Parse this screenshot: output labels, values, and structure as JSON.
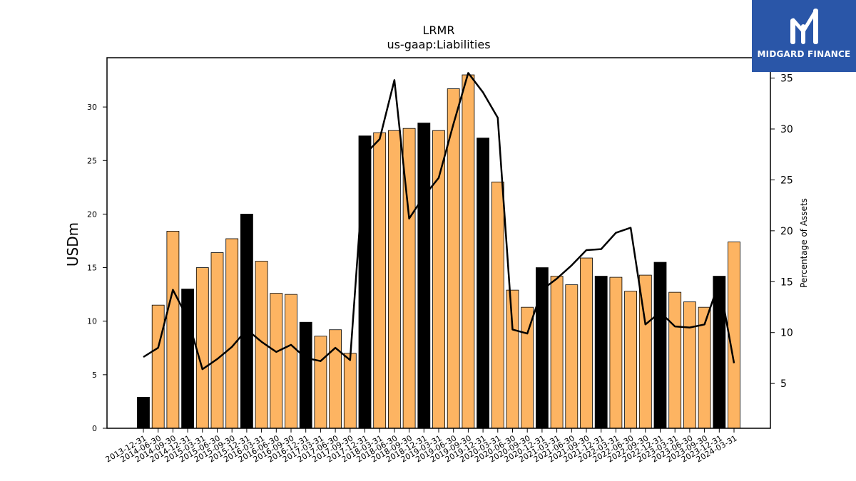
{
  "logo": {
    "text": "MIDGARD FINANCE",
    "background": "#2a56a8"
  },
  "chart_data": {
    "type": "bar",
    "title": "LRMR",
    "subtitle": "us-gaap:Liabilities",
    "ylabel": "USDm",
    "y2label": "Percentage of Assets",
    "ylim": [
      0,
      34.6
    ],
    "y2lim": [
      0.6,
      37.0
    ],
    "yticks": [
      0,
      5,
      10,
      15,
      20,
      25,
      30
    ],
    "y2ticks": [
      5,
      10,
      15,
      20,
      25,
      30,
      35
    ],
    "categories": [
      "2013-12-31",
      "2014-06-30",
      "2014-09-30",
      "2014-12-31",
      "2015-03-31",
      "2015-06-30",
      "2015-09-30",
      "2015-12-31",
      "2016-03-31",
      "2016-06-30",
      "2016-09-30",
      "2016-12-31",
      "2017-03-31",
      "2017-06-30",
      "2017-09-30",
      "2017-12-31",
      "2018-03-31",
      "2018-06-30",
      "2018-09-30",
      "2018-12-31",
      "2019-03-31",
      "2019-06-30",
      "2019-09-30",
      "2019-12-31",
      "2020-03-31",
      "2020-06-30",
      "2020-09-30",
      "2020-12-31",
      "2021-03-31",
      "2021-06-30",
      "2021-09-30",
      "2021-12-31",
      "2022-03-31",
      "2022-06-30",
      "2022-09-30",
      "2022-12-31",
      "2023-03-31",
      "2023-06-30",
      "2023-09-30",
      "2023-12-31",
      "2024-03-31"
    ],
    "series": [
      {
        "values": [
          2.9,
          11.5,
          18.4,
          13.0,
          15.0,
          16.4,
          17.7,
          20.0,
          15.6,
          12.6,
          12.5,
          9.9,
          8.6,
          9.2,
          7.0,
          27.3,
          27.6,
          27.8,
          28.0,
          28.5,
          27.8,
          31.7,
          33.0,
          27.1,
          23.0,
          12.9,
          11.3,
          15.0,
          14.2,
          13.4,
          15.9,
          14.2,
          14.1,
          12.8,
          14.3,
          15.5,
          12.7,
          11.8,
          11.3,
          14.2,
          17.4
        ]
      }
    ],
    "highlight_indices": [
      0,
      3,
      7,
      11,
      15,
      19,
      23,
      27,
      31,
      35,
      39
    ],
    "colors": {
      "bar": "#fdb462",
      "bar_highlight": "#000000",
      "line": "#000000"
    },
    "line": {
      "axis": "right",
      "values": [
        7.6,
        8.5,
        14.2,
        11.4,
        6.4,
        7.4,
        8.6,
        10.3,
        9.1,
        8.1,
        8.8,
        7.5,
        7.2,
        8.5,
        7.3,
        27.5,
        29.0,
        34.8,
        21.2,
        23.4,
        25.2,
        30.5,
        35.5,
        33.6,
        31.1,
        10.3,
        9.9,
        14.2,
        15.3,
        16.6,
        18.1,
        18.2,
        19.8,
        20.3,
        10.8,
        12.0,
        10.6,
        10.5,
        10.8,
        15.0,
        7.0
      ]
    }
  }
}
